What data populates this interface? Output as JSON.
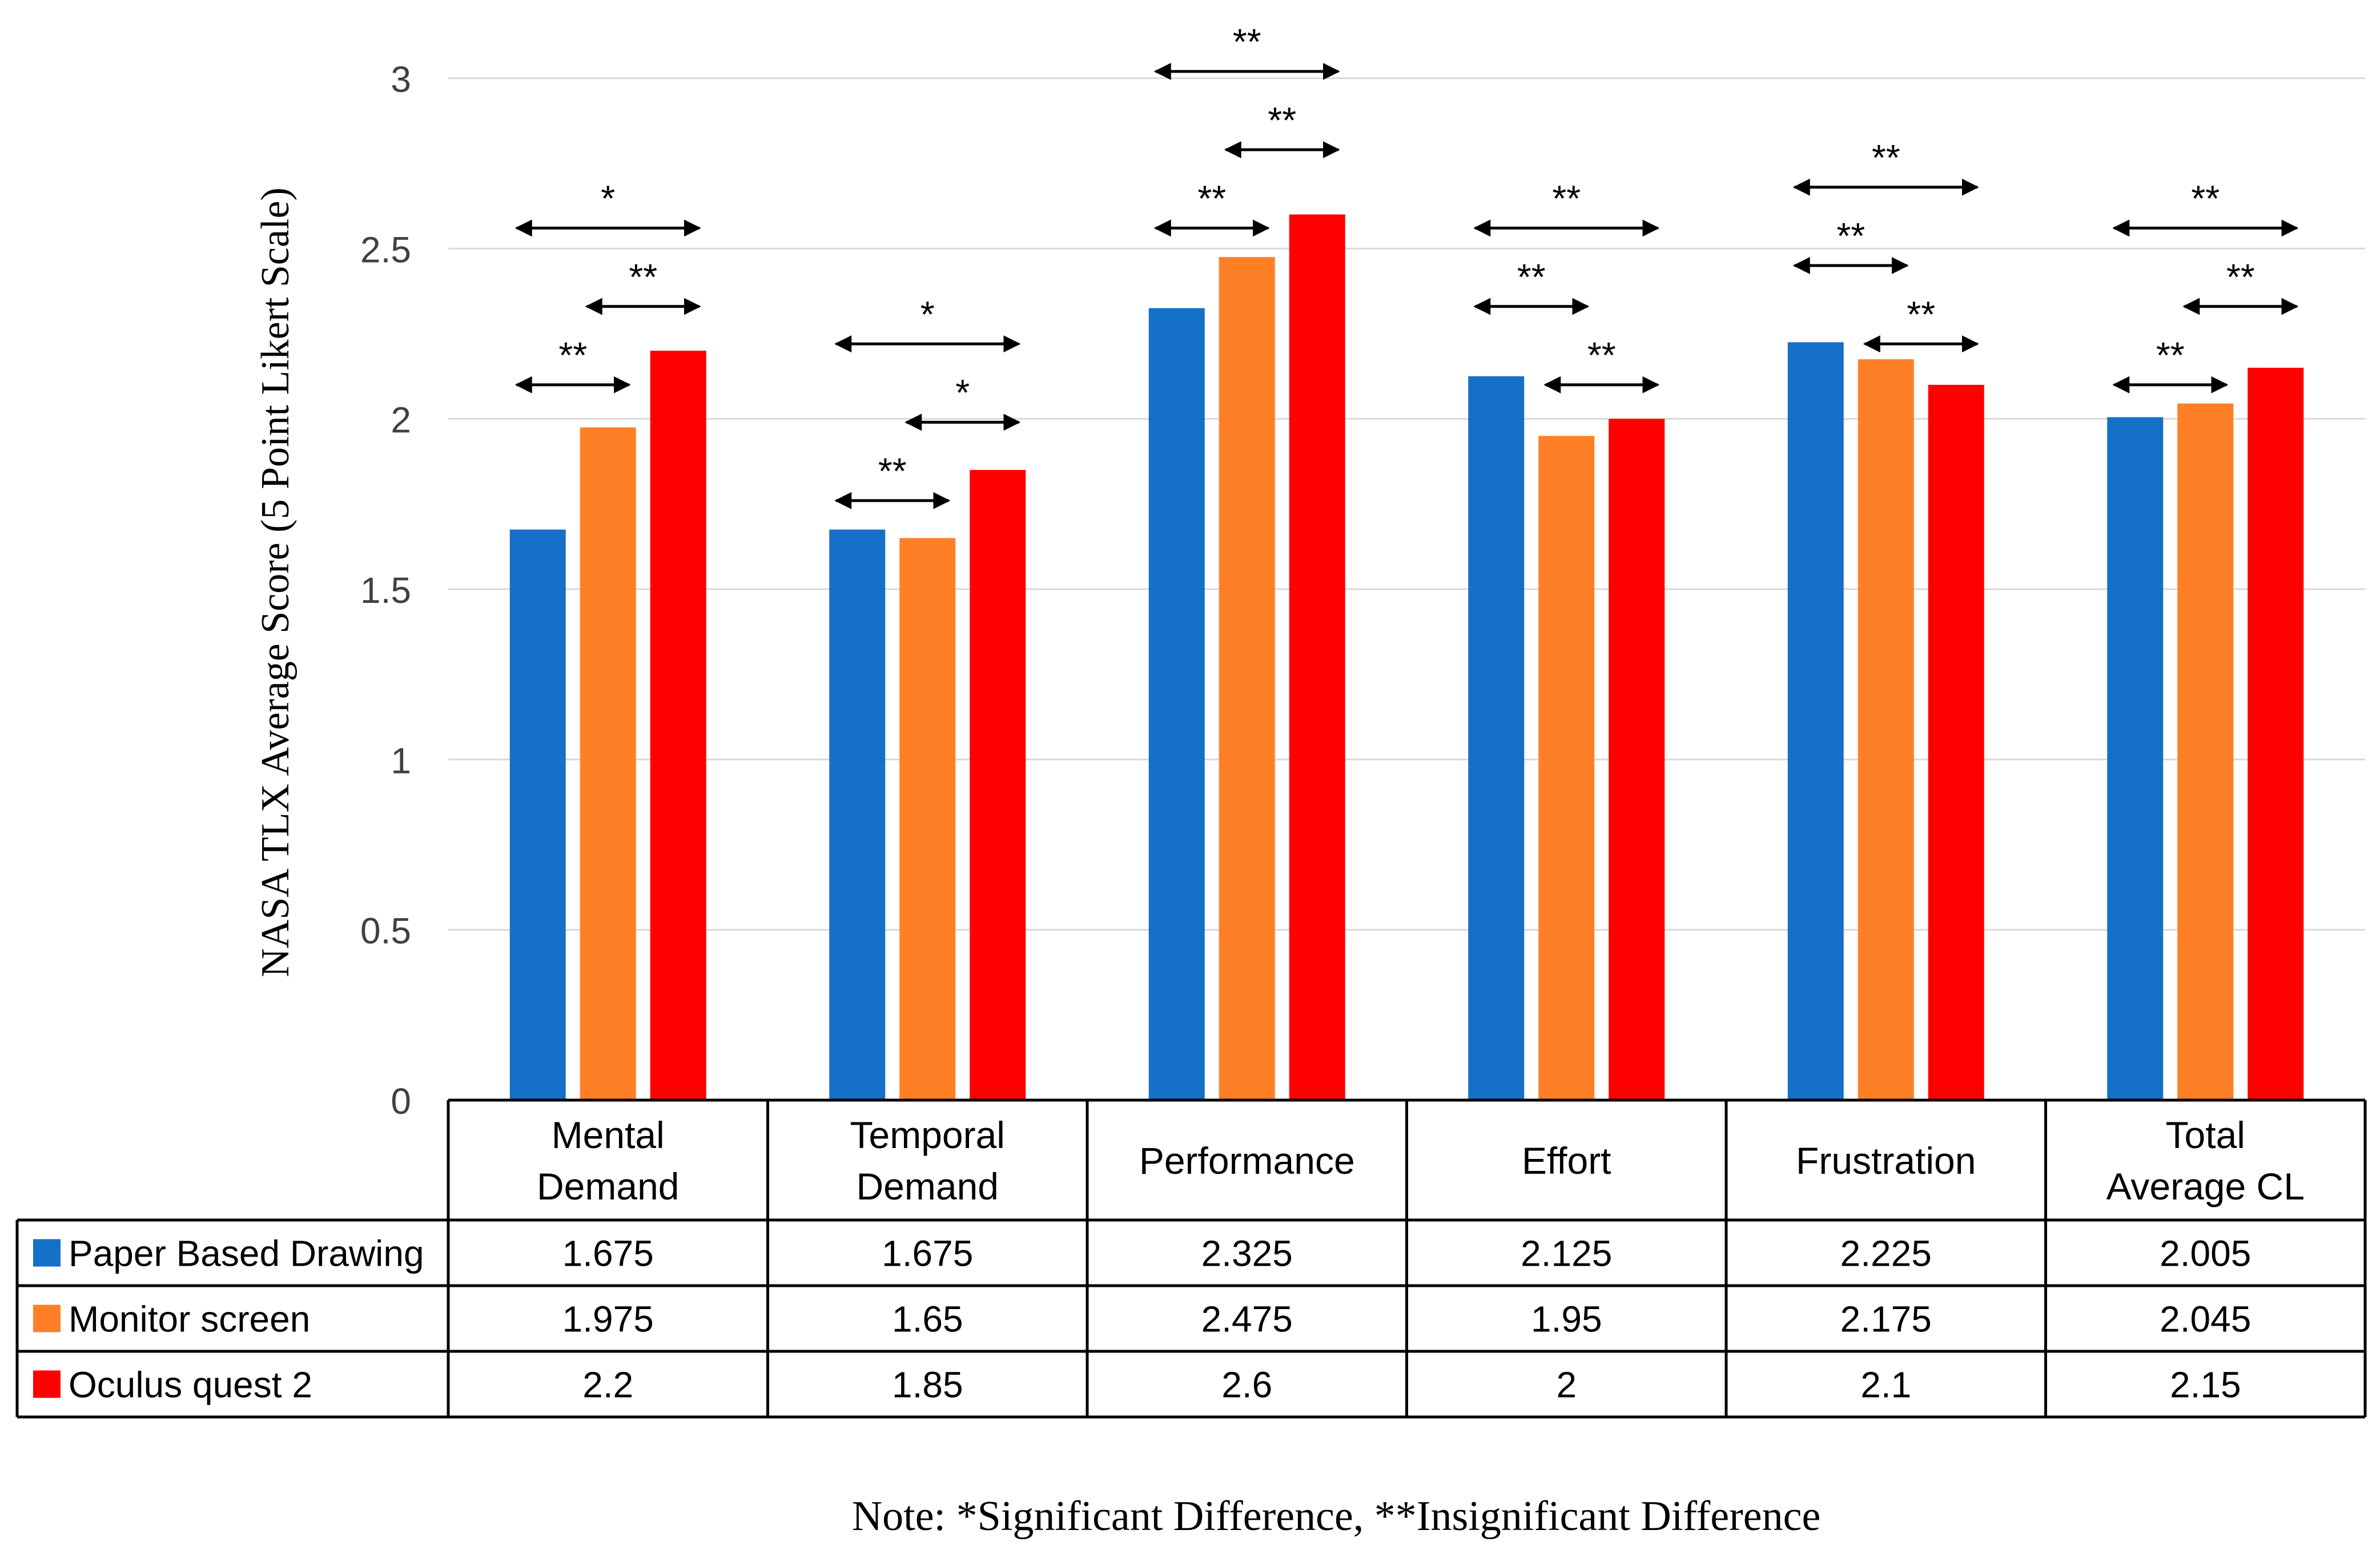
{
  "chart_data": {
    "type": "bar",
    "ylabel": "NASA TLX Average Score (5 Point Likert Scale)",
    "ylim": [
      0,
      3
    ],
    "yticks": [
      0,
      0.5,
      1,
      1.5,
      2,
      2.5,
      3
    ],
    "ytick_labels": [
      "0",
      "0.5",
      "1",
      "1.5",
      "2",
      "2.5",
      "3"
    ],
    "grid": true,
    "categories": [
      [
        "Mental",
        "Demand"
      ],
      [
        "Temporal",
        "Demand"
      ],
      [
        "Performance"
      ],
      [
        "Effort"
      ],
      [
        "Frustration"
      ],
      [
        "Total",
        "Average CL"
      ]
    ],
    "series": [
      {
        "name": "Paper Based Drawing",
        "color": "#1570C8",
        "values": [
          1.675,
          1.675,
          2.325,
          2.125,
          2.225,
          2.005
        ],
        "labels": [
          "1.675",
          "1.675",
          "2.325",
          "2.125",
          "2.225",
          "2.005"
        ]
      },
      {
        "name": "Monitor screen",
        "color": "#FF7F27",
        "values": [
          1.975,
          1.65,
          2.475,
          1.95,
          2.175,
          2.045
        ],
        "labels": [
          "1.975",
          "1.65",
          "2.475",
          "1.95",
          "2.175",
          "2.045"
        ]
      },
      {
        "name": "Oculus quest 2",
        "color": "#FF0000",
        "values": [
          2.2,
          1.85,
          2.6,
          2.0,
          2.1,
          2.15
        ],
        "labels": [
          "2.2",
          "1.85",
          "2.6",
          "2",
          "2.1",
          "2.15"
        ]
      }
    ],
    "annotations": [
      {
        "category": 0,
        "from": 0,
        "to": 1,
        "level": 2.1,
        "label": "**"
      },
      {
        "category": 0,
        "from": 1,
        "to": 2,
        "level": 2.33,
        "label": "**"
      },
      {
        "category": 0,
        "from": 0,
        "to": 2,
        "level": 2.56,
        "label": "*"
      },
      {
        "category": 1,
        "from": 0,
        "to": 1,
        "level": 1.76,
        "label": "**"
      },
      {
        "category": 1,
        "from": 1,
        "to": 2,
        "level": 1.99,
        "label": "*"
      },
      {
        "category": 1,
        "from": 0,
        "to": 2,
        "level": 2.22,
        "label": "*"
      },
      {
        "category": 2,
        "from": 0,
        "to": 1,
        "level": 2.56,
        "label": "**"
      },
      {
        "category": 2,
        "from": 1,
        "to": 2,
        "level": 2.79,
        "label": "**"
      },
      {
        "category": 2,
        "from": 0,
        "to": 2,
        "level": 3.02,
        "label": "**"
      },
      {
        "category": 3,
        "from": 0,
        "to": 1,
        "level": 2.33,
        "label": "**"
      },
      {
        "category": 3,
        "from": 1,
        "to": 2,
        "level": 2.1,
        "label": "**"
      },
      {
        "category": 3,
        "from": 0,
        "to": 2,
        "level": 2.56,
        "label": "**"
      },
      {
        "category": 4,
        "from": 0,
        "to": 1,
        "level": 2.45,
        "label": "**"
      },
      {
        "category": 4,
        "from": 1,
        "to": 2,
        "level": 2.22,
        "label": "**"
      },
      {
        "category": 4,
        "from": 0,
        "to": 2,
        "level": 2.68,
        "label": "**"
      },
      {
        "category": 5,
        "from": 0,
        "to": 1,
        "level": 2.1,
        "label": "**"
      },
      {
        "category": 5,
        "from": 1,
        "to": 2,
        "level": 2.33,
        "label": "**"
      },
      {
        "category": 5,
        "from": 0,
        "to": 2,
        "level": 2.56,
        "label": "**"
      }
    ]
  },
  "note": "Note: *Significant Difference, **Insignificant Difference"
}
